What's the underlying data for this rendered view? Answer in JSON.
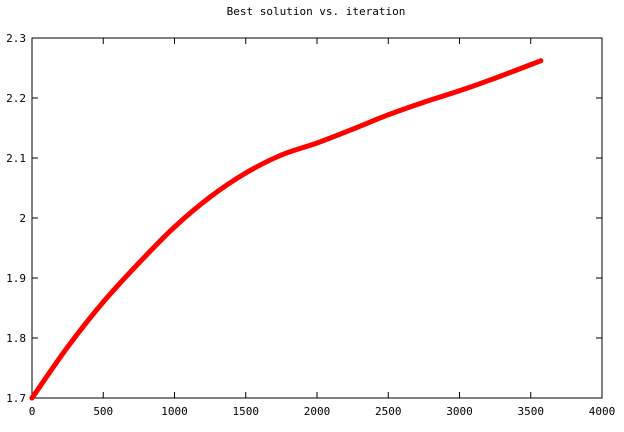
{
  "chart_data": {
    "type": "line",
    "title": "Best solution vs. iteration",
    "xlabel": "",
    "ylabel": "",
    "xlim": [
      0,
      4000
    ],
    "ylim": [
      1.7,
      2.3
    ],
    "xticks": [
      0,
      500,
      1000,
      1500,
      2000,
      2500,
      3000,
      3500,
      4000
    ],
    "xtick_labels": [
      "0",
      "500",
      "1000",
      "1500",
      "2000",
      "2500",
      "3000",
      "3500",
      "4000"
    ],
    "yticks": [
      1.7,
      1.8,
      1.9,
      2.0,
      2.1,
      2.2,
      2.3
    ],
    "ytick_labels": [
      "1.7",
      "1.8",
      "1.9",
      "2",
      "2.1",
      "2.2",
      "2.3"
    ],
    "grid": false,
    "series": [
      {
        "color": "#ff0000",
        "x": [
          0,
          250,
          500,
          750,
          1000,
          1250,
          1500,
          1750,
          2000,
          2250,
          2500,
          2750,
          3000,
          3250,
          3570
        ],
        "y": [
          1.7,
          1.785,
          1.86,
          1.925,
          1.985,
          2.035,
          2.075,
          2.105,
          2.125,
          2.148,
          2.172,
          2.193,
          2.212,
          2.233,
          2.262
        ]
      }
    ]
  }
}
